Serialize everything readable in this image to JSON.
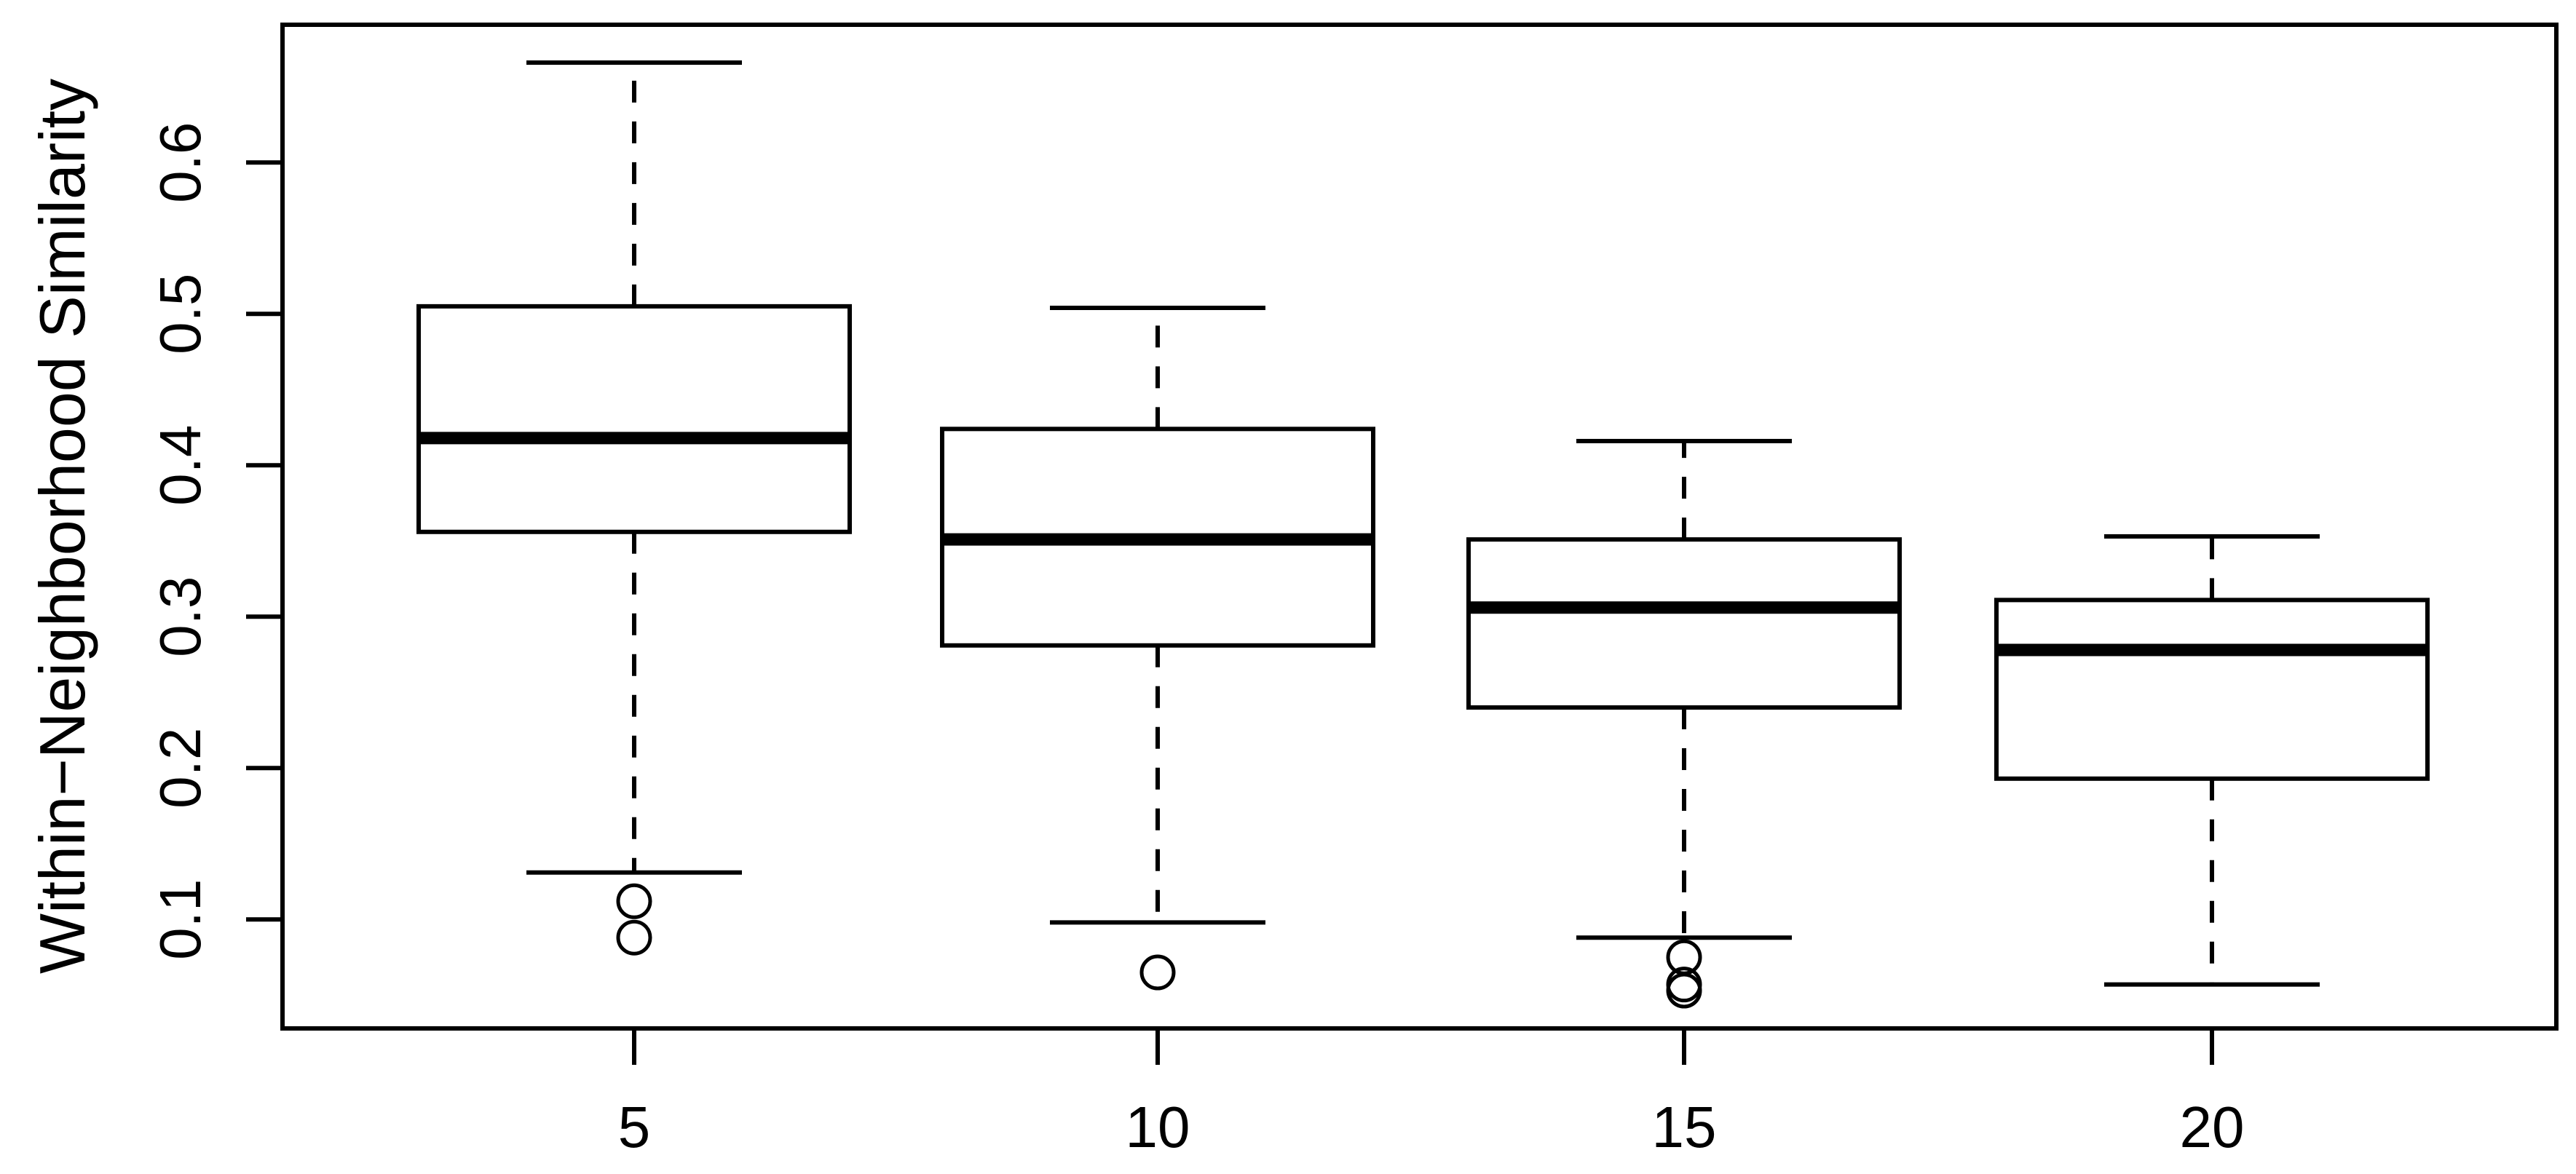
{
  "figure": {
    "background": "#ffffff",
    "foreground": "#000000"
  },
  "chart_data": {
    "type": "boxplot",
    "title": "",
    "xlabel": "",
    "ylabel": "Within−Neighborhood Similarity",
    "categories": [
      "5",
      "10",
      "15",
      "20"
    ],
    "y_ticks": [
      "0.1",
      "0.2",
      "0.3",
      "0.4",
      "0.5",
      "0.6"
    ],
    "ylim": [
      0.028,
      0.691
    ],
    "grid": false,
    "frame": true,
    "legend": null,
    "line_color": "#000000",
    "boxes": [
      {
        "category": "5",
        "whisker_low": 0.131,
        "q1": 0.356,
        "median": 0.418,
        "q3": 0.505,
        "whisker_high": 0.666,
        "outliers": [
          0.112,
          0.088
        ]
      },
      {
        "category": "10",
        "whisker_low": 0.098,
        "q1": 0.281,
        "median": 0.351,
        "q3": 0.424,
        "whisker_high": 0.504,
        "outliers": [
          0.065
        ]
      },
      {
        "category": "15",
        "whisker_low": 0.088,
        "q1": 0.24,
        "median": 0.306,
        "q3": 0.351,
        "whisker_high": 0.416,
        "outliers": [
          0.075,
          0.057,
          0.053
        ]
      },
      {
        "category": "20",
        "whisker_low": 0.057,
        "q1": 0.193,
        "median": 0.278,
        "q3": 0.311,
        "whisker_high": 0.353,
        "outliers": []
      }
    ]
  }
}
